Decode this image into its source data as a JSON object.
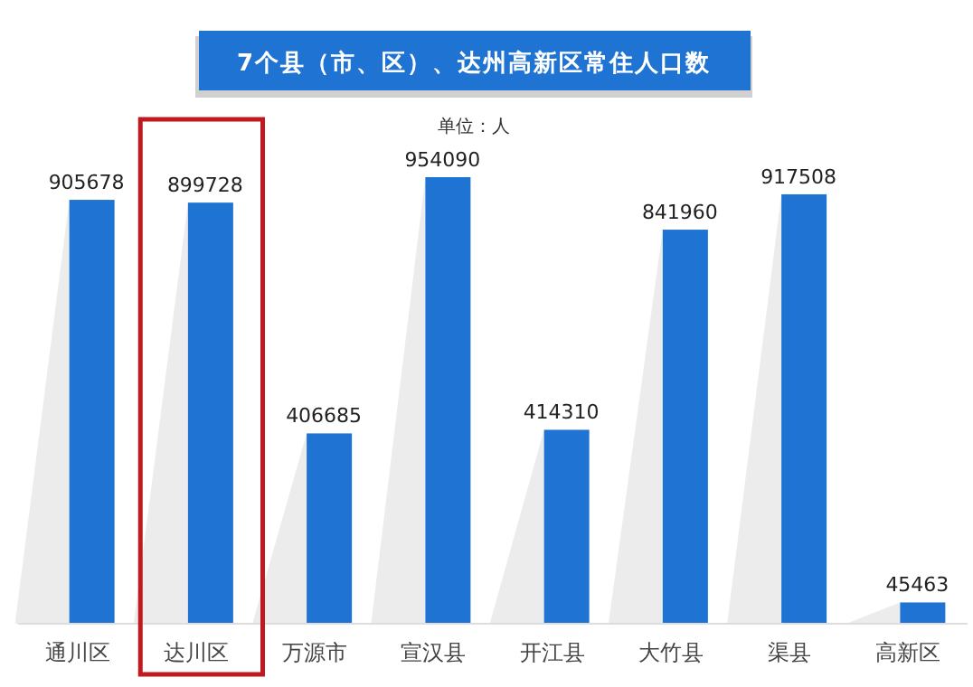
{
  "chart_data": {
    "type": "bar",
    "title": "7个县（市、区）、达州高新区常住人口数",
    "subtitle": "单位：人",
    "categories": [
      "通川区",
      "达川区",
      "万源市",
      "宣汉县",
      "开江县",
      "大竹县",
      "渠县",
      "高新区"
    ],
    "values": [
      905678,
      899728,
      406685,
      954090,
      414310,
      841960,
      917508,
      45463
    ],
    "color": "#1f73d2",
    "data_labels": true
  }
}
